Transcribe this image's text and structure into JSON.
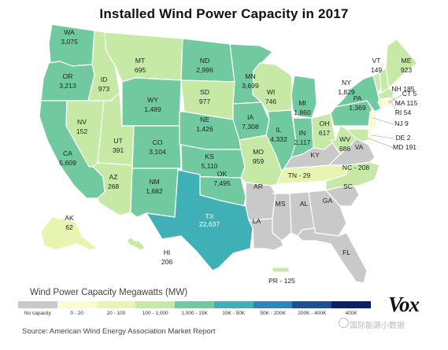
{
  "title": "Installed Wind Power Capacity in 2017",
  "legend": {
    "title": "Wind Power Capacity Megawatts (MW)",
    "bins": [
      {
        "label": "No capacity",
        "color": "#c9c9c9"
      },
      {
        "label": "0 - 20",
        "color": "#fbfbce"
      },
      {
        "label": "20 - 100",
        "color": "#e7f5b0"
      },
      {
        "label": "100 - 1,000",
        "color": "#c6eaa6"
      },
      {
        "label": "1,000 - 15K",
        "color": "#71c9a0"
      },
      {
        "label": "15K - 50K",
        "color": "#3fb1b6"
      },
      {
        "label": "50K - 200K",
        "color": "#2b86bd"
      },
      {
        "label": "200K - 400K",
        "color": "#1d4f99"
      },
      {
        "label": "400K",
        "color": "#0d2066"
      }
    ]
  },
  "source": "Source: American Wind Energy Association Market Report",
  "logo": "Vox",
  "watermark": "国际能源小数据",
  "states": [
    {
      "id": "WA",
      "value": "3,075",
      "bin": 4
    },
    {
      "id": "OR",
      "value": "3,213",
      "bin": 4
    },
    {
      "id": "CA",
      "value": "5,609",
      "bin": 4
    },
    {
      "id": "NV",
      "value": "152",
      "bin": 3
    },
    {
      "id": "ID",
      "value": "973",
      "bin": 3
    },
    {
      "id": "MT",
      "value": "695",
      "bin": 3
    },
    {
      "id": "WY",
      "value": "1,489",
      "bin": 4
    },
    {
      "id": "UT",
      "value": "391",
      "bin": 3
    },
    {
      "id": "AZ",
      "value": "268",
      "bin": 3
    },
    {
      "id": "CO",
      "value": "3,104",
      "bin": 4
    },
    {
      "id": "NM",
      "value": "1,682",
      "bin": 4
    },
    {
      "id": "ND",
      "value": "2,996",
      "bin": 4
    },
    {
      "id": "SD",
      "value": "977",
      "bin": 3
    },
    {
      "id": "NE",
      "value": "1,426",
      "bin": 4
    },
    {
      "id": "KS",
      "value": "5,110",
      "bin": 4
    },
    {
      "id": "OK",
      "value": "7,495",
      "bin": 4
    },
    {
      "id": "TX",
      "value": "22,637",
      "bin": 5
    },
    {
      "id": "MN",
      "value": "3,699",
      "bin": 4
    },
    {
      "id": "IA",
      "value": "7,308",
      "bin": 4
    },
    {
      "id": "MO",
      "value": "959",
      "bin": 3
    },
    {
      "id": "AR",
      "value": "",
      "bin": 0
    },
    {
      "id": "LA",
      "value": "",
      "bin": 0
    },
    {
      "id": "WI",
      "value": "746",
      "bin": 3
    },
    {
      "id": "IL",
      "value": "4,332",
      "bin": 4
    },
    {
      "id": "MI",
      "value": "1,860",
      "bin": 4
    },
    {
      "id": "IN",
      "value": "2,117",
      "bin": 4
    },
    {
      "id": "OH",
      "value": "617",
      "bin": 3
    },
    {
      "id": "KY",
      "value": "",
      "bin": 0
    },
    {
      "id": "TN",
      "value": "29",
      "bin": 2
    },
    {
      "id": "MS",
      "value": "",
      "bin": 0
    },
    {
      "id": "AL",
      "value": "",
      "bin": 0
    },
    {
      "id": "GA",
      "value": "",
      "bin": 0
    },
    {
      "id": "FL",
      "value": "",
      "bin": 0
    },
    {
      "id": "SC",
      "value": "",
      "bin": 0
    },
    {
      "id": "NC",
      "value": "208",
      "bin": 3
    },
    {
      "id": "VA",
      "value": "",
      "bin": 0
    },
    {
      "id": "WV",
      "value": "686",
      "bin": 3
    },
    {
      "id": "PA",
      "value": "1,369",
      "bin": 4
    },
    {
      "id": "NY",
      "value": "1,829",
      "bin": 4
    },
    {
      "id": "VT",
      "value": "149",
      "bin": 3
    },
    {
      "id": "NH",
      "value": "185",
      "bin": 3
    },
    {
      "id": "ME",
      "value": "923",
      "bin": 3
    },
    {
      "id": "MA",
      "value": "115",
      "bin": 3
    },
    {
      "id": "CT",
      "value": "5",
      "bin": 1
    },
    {
      "id": "RI",
      "value": "54",
      "bin": 2
    },
    {
      "id": "NJ",
      "value": "9",
      "bin": 1
    },
    {
      "id": "DE",
      "value": "2",
      "bin": 1
    },
    {
      "id": "MD",
      "value": "191",
      "bin": 3
    },
    {
      "id": "AK",
      "value": "62",
      "bin": 2
    },
    {
      "id": "HI",
      "value": "206",
      "bin": 3
    },
    {
      "id": "PR",
      "value": "125",
      "bin": 3
    }
  ]
}
